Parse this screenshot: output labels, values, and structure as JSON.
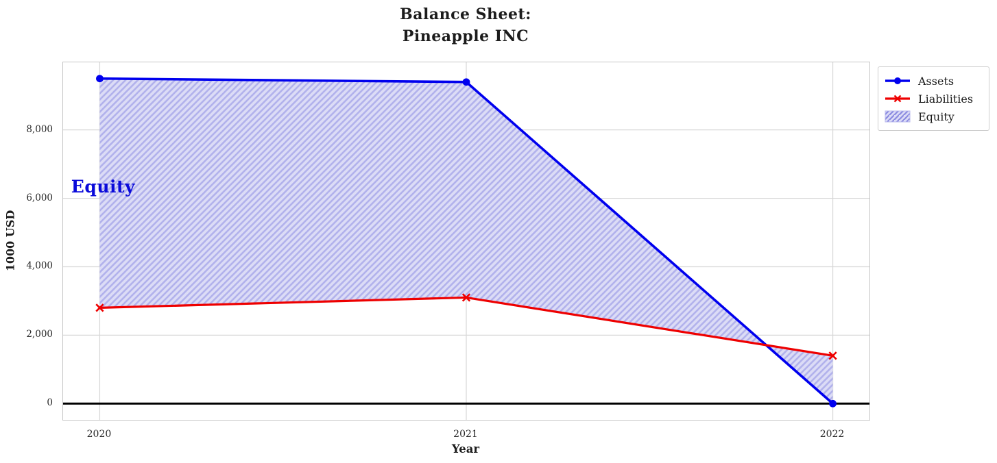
{
  "chart_data": {
    "type": "line",
    "title": "Balance Sheet:\nPineapple INC",
    "xlabel": "Year",
    "ylabel": "1000 USD",
    "x": [
      2020,
      2021,
      2022
    ],
    "xtick_labels": [
      "2020",
      "2021",
      "2022"
    ],
    "ytick_values": [
      0,
      2000,
      4000,
      6000,
      8000
    ],
    "ytick_labels": [
      "0",
      "2,000",
      "4,000",
      "6,000",
      "8,000"
    ],
    "xlim": [
      2019.9,
      2022.1
    ],
    "ylim": [
      -475,
      9975
    ],
    "grid": true,
    "grid_color": "#d7d7d7",
    "zero_line": {
      "y": 0,
      "color": "#000000"
    },
    "series": [
      {
        "name": "Assets",
        "color": "#0000ee",
        "marker": "circle",
        "line_width": 3.6,
        "values": [
          9500,
          9400,
          0
        ]
      },
      {
        "name": "Liabilities",
        "color": "#ee0000",
        "marker": "x",
        "line_width": 3.2,
        "values": [
          2800,
          3100,
          1400
        ]
      }
    ],
    "fill": {
      "name": "Equity",
      "between": [
        "Assets",
        "Liabilities"
      ],
      "facecolor": "#dcdcf6",
      "hatch": "//",
      "hatch_color": "#b2b2ec"
    },
    "annotation": {
      "text": "Equity",
      "color": "#0a0ada",
      "x": 2020,
      "y": 6050
    },
    "legend": {
      "position": "upper right outside",
      "items": [
        {
          "label": "Assets"
        },
        {
          "label": "Liabilities"
        },
        {
          "label": "Equity"
        }
      ]
    }
  }
}
